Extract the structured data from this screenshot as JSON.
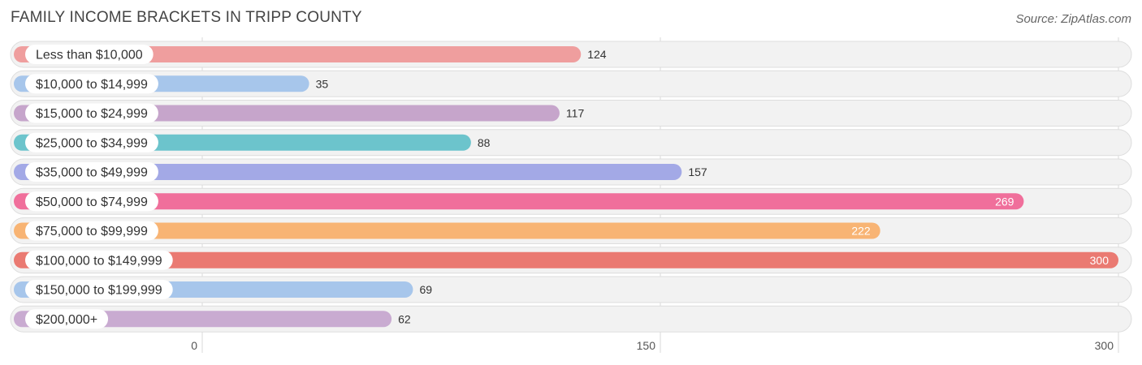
{
  "header": {
    "title": "FAMILY INCOME BRACKETS IN TRIPP COUNTY",
    "source": "Source: ZipAtlas.com"
  },
  "chart_data": {
    "type": "bar",
    "orientation": "horizontal",
    "title": "FAMILY INCOME BRACKETS IN TRIPP COUNTY",
    "xlabel": "",
    "ylabel": "",
    "xlim": [
      0,
      300
    ],
    "ticks": [
      0,
      150,
      300
    ],
    "tick_labels": [
      "0",
      "150",
      "300"
    ],
    "grid": true,
    "categories": [
      "Less than $10,000",
      "$10,000 to $14,999",
      "$15,000 to $24,999",
      "$25,000 to $34,999",
      "$35,000 to $49,999",
      "$50,000 to $74,999",
      "$75,000 to $99,999",
      "$100,000 to $149,999",
      "$150,000 to $199,999",
      "$200,000+"
    ],
    "values": [
      124,
      35,
      117,
      88,
      157,
      269,
      222,
      300,
      69,
      62
    ],
    "colors": [
      "#ef9e9e",
      "#a7c6eb",
      "#c6a5cb",
      "#6cc4cc",
      "#a3a9e6",
      "#f06f9b",
      "#f8b474",
      "#ea7a72",
      "#a7c6eb",
      "#c9abd1"
    ]
  }
}
